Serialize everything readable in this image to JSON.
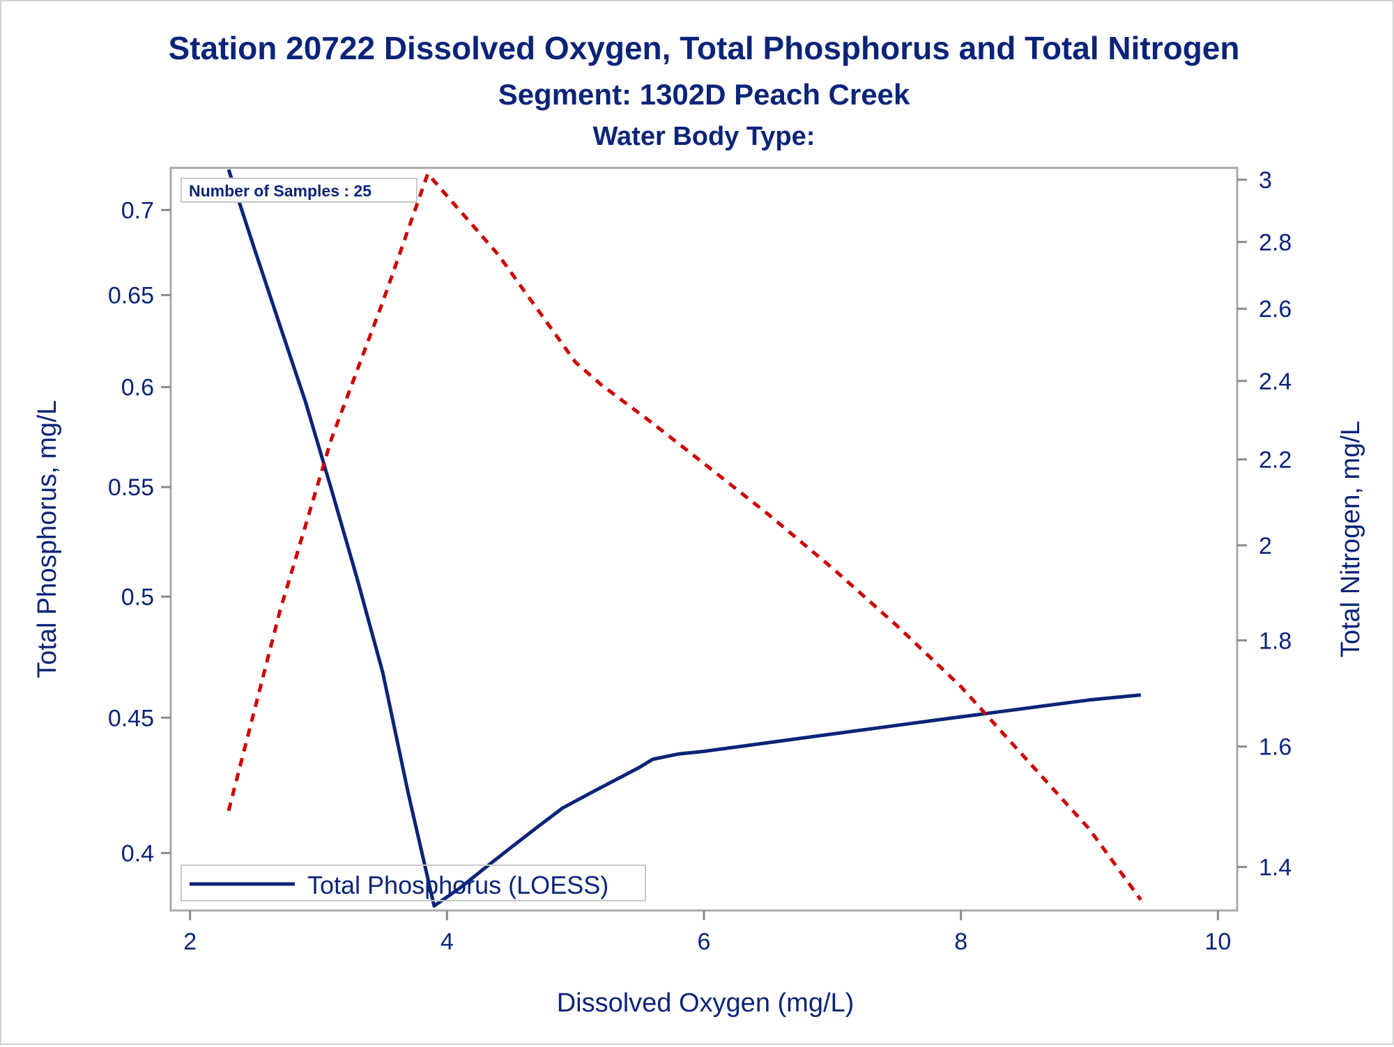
{
  "chart_data": {
    "type": "line",
    "title": "Station 20722  Dissolved Oxygen, Total Phosphorus and Total Nitrogen",
    "subtitle": "Segment: 1302D  Peach Creek",
    "subtitle2": "Water Body Type:",
    "xlabel": "Dissolved Oxygen (mg/L)",
    "ylabel_left": "Total Phosphorus, mg/L",
    "ylabel_right": "Total Nitrogen, mg/L",
    "inset_label": "Number of Samples : 25",
    "xlim": [
      1.85,
      10.15
    ],
    "ylim_left": [
      0.3805,
      0.7261
    ],
    "ylim_right": [
      1.3341,
      3.0396
    ],
    "y_scale": "log",
    "x_ticks": [
      {
        "value": 2,
        "label": "2"
      },
      {
        "value": 4,
        "label": "4"
      },
      {
        "value": 6,
        "label": "6"
      },
      {
        "value": 8,
        "label": "8"
      },
      {
        "value": 10,
        "label": "10"
      }
    ],
    "y_left_ticks": [
      {
        "value": 0.4,
        "label": "0.4"
      },
      {
        "value": 0.45,
        "label": "0.45"
      },
      {
        "value": 0.5,
        "label": "0.5"
      },
      {
        "value": 0.55,
        "label": "0.55"
      },
      {
        "value": 0.6,
        "label": "0.6"
      },
      {
        "value": 0.65,
        "label": "0.65"
      },
      {
        "value": 0.7,
        "label": "0.7"
      }
    ],
    "y_right_ticks": [
      {
        "value": 1.4,
        "label": "1.4"
      },
      {
        "value": 1.6,
        "label": "1.6"
      },
      {
        "value": 1.8,
        "label": "1.8"
      },
      {
        "value": 2.0,
        "label": "2"
      },
      {
        "value": 2.2,
        "label": "2.2"
      },
      {
        "value": 2.4,
        "label": "2.4"
      },
      {
        "value": 2.6,
        "label": "2.6"
      },
      {
        "value": 2.8,
        "label": "2.8"
      },
      {
        "value": 3.0,
        "label": "3"
      }
    ],
    "legend_placement": "bottom-left",
    "grid": false,
    "series": [
      {
        "name": "Total Phosphorus (LOESS)",
        "axis": "left",
        "color": "#0b2478",
        "style": "solid",
        "x": [
          2.3,
          2.5,
          2.7,
          2.9,
          3.1,
          3.3,
          3.5,
          3.7,
          3.9,
          4.1,
          4.3,
          4.5,
          4.7,
          4.9,
          5.1,
          5.3,
          5.5,
          5.6,
          5.8,
          6.0,
          6.3,
          6.6,
          6.9,
          7.2,
          7.5,
          7.8,
          8.1,
          8.4,
          8.7,
          9.0,
          9.4
        ],
        "y": [
          0.725,
          0.677,
          0.633,
          0.592,
          0.549,
          0.508,
          0.468,
          0.421,
          0.382,
          0.388,
          0.395,
          0.402,
          0.409,
          0.416,
          0.421,
          0.426,
          0.431,
          0.434,
          0.436,
          0.437,
          0.439,
          0.441,
          0.443,
          0.445,
          0.447,
          0.449,
          0.451,
          0.453,
          0.455,
          0.457,
          0.459
        ]
      },
      {
        "name": "",
        "axis": "right",
        "color": "#cc0000",
        "style": "dashed",
        "x": [
          2.3,
          2.7,
          3.1,
          3.5,
          3.85,
          4.4,
          5.0,
          5.2,
          5.6,
          6.0,
          6.5,
          7.0,
          7.5,
          8.0,
          8.5,
          9.0,
          9.4
        ],
        "y": [
          1.49,
          1.86,
          2.25,
          2.62,
          3.02,
          2.76,
          2.45,
          2.39,
          2.29,
          2.19,
          2.07,
          1.95,
          1.83,
          1.71,
          1.58,
          1.46,
          1.35
        ]
      }
    ]
  }
}
